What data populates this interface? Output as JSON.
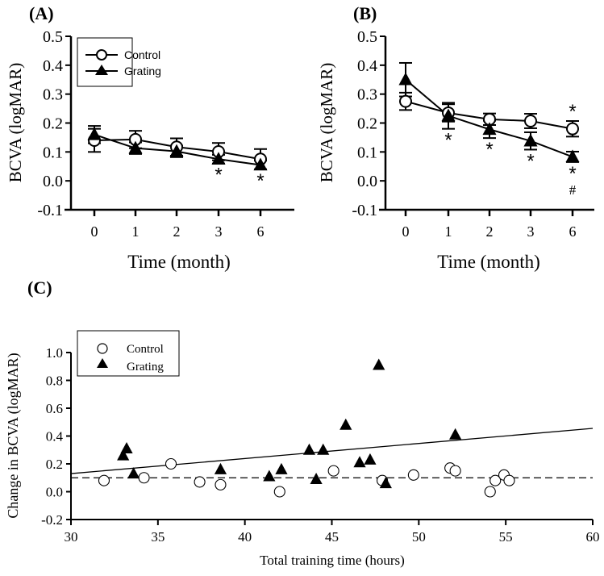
{
  "chart_data": [
    {
      "id": "A",
      "panel_label": "(A)",
      "type": "line",
      "xlabel": "Time (month)",
      "ylabel": "BCVA (logMAR)",
      "categories": [
        "0",
        "1",
        "2",
        "3",
        "6"
      ],
      "ylim": [
        -0.1,
        0.5
      ],
      "yticks": [
        "0.5",
        "0.4",
        "0.3",
        "0.2",
        "0.1",
        "0.0",
        "-0.1"
      ],
      "legend": {
        "placement": "top-left",
        "entries": [
          "Control",
          "Grating"
        ]
      },
      "series": [
        {
          "name": "Control",
          "marker": "open-circle",
          "values": [
            0.14,
            0.143,
            0.117,
            0.101,
            0.075
          ],
          "errors": [
            0.04,
            0.03,
            0.03,
            0.03,
            0.035
          ]
        },
        {
          "name": "Grating",
          "marker": "filled-triangle",
          "values": [
            0.16,
            0.113,
            0.102,
            0.075,
            0.055
          ],
          "errors": [
            0.03,
            0.02,
            0.02,
            0.015,
            0.015
          ]
        }
      ],
      "annotations": [
        {
          "text": "*",
          "category": "3",
          "position": "below-grating"
        },
        {
          "text": "*",
          "category": "6",
          "position": "below-grating"
        }
      ]
    },
    {
      "id": "B",
      "panel_label": "(B)",
      "type": "line",
      "xlabel": "Time (month)",
      "ylabel": "BCVA (logMAR)",
      "categories": [
        "0",
        "1",
        "2",
        "3",
        "6"
      ],
      "ylim": [
        -0.1,
        0.5
      ],
      "yticks": [
        "0.5",
        "0.4",
        "0.3",
        "0.2",
        "0.1",
        "0.0",
        "-0.1"
      ],
      "series": [
        {
          "name": "Control",
          "marker": "open-circle",
          "values": [
            0.275,
            0.235,
            0.213,
            0.207,
            0.18
          ],
          "errors": [
            0.03,
            0.03,
            0.02,
            0.025,
            0.027
          ]
        },
        {
          "name": "Grating",
          "marker": "filled-triangle",
          "values": [
            0.35,
            0.225,
            0.178,
            0.138,
            0.083
          ],
          "errors": [
            0.058,
            0.045,
            0.03,
            0.03,
            0.018
          ]
        }
      ],
      "annotations": [
        {
          "text": "*",
          "category": "1",
          "position": "below-grating"
        },
        {
          "text": "*",
          "category": "2",
          "position": "below-grating"
        },
        {
          "text": "*",
          "category": "3",
          "position": "below-grating"
        },
        {
          "text": "*",
          "category": "6",
          "position": "above-control"
        },
        {
          "text": "*",
          "category": "6",
          "position": "below-grating"
        },
        {
          "text": "#",
          "category": "6",
          "position": "below-grating-2"
        }
      ]
    },
    {
      "id": "C",
      "panel_label": "(C)",
      "type": "scatter",
      "xlabel": "Total training time (hours)",
      "ylabel": "Change in BCVA (logMAR)",
      "xlim": [
        30,
        60
      ],
      "ylim": [
        -0.2,
        1.0
      ],
      "xticks": [
        "30",
        "35",
        "40",
        "45",
        "50",
        "55",
        "60"
      ],
      "yticks": [
        "1.0",
        "0.8",
        "0.6",
        "0.4",
        "0.2",
        "0.0",
        "-0.2"
      ],
      "legend": {
        "placement": "top-left",
        "entries": [
          "Control",
          "Grating"
        ]
      },
      "series": [
        {
          "name": "Control",
          "marker": "open-circle",
          "points": [
            [
              31.9,
              0.08
            ],
            [
              34.2,
              0.1
            ],
            [
              35.75,
              0.2
            ],
            [
              37.4,
              0.07
            ],
            [
              38.6,
              0.05
            ],
            [
              42.0,
              0.0
            ],
            [
              45.1,
              0.15
            ],
            [
              47.9,
              0.08
            ],
            [
              49.7,
              0.12
            ],
            [
              51.8,
              0.17
            ],
            [
              52.1,
              0.15
            ],
            [
              54.1,
              0.0
            ],
            [
              54.4,
              0.08
            ],
            [
              54.9,
              0.12
            ],
            [
              55.2,
              0.08
            ]
          ]
        },
        {
          "name": "Grating",
          "marker": "filled-triangle",
          "points": [
            [
              33.0,
              0.26
            ],
            [
              33.2,
              0.31
            ],
            [
              33.6,
              0.13
            ],
            [
              38.6,
              0.16
            ],
            [
              41.4,
              0.11
            ],
            [
              42.1,
              0.16
            ],
            [
              43.7,
              0.3
            ],
            [
              44.1,
              0.09
            ],
            [
              44.5,
              0.3
            ],
            [
              45.8,
              0.48
            ],
            [
              46.6,
              0.21
            ],
            [
              47.2,
              0.23
            ],
            [
              47.7,
              0.91
            ],
            [
              48.1,
              0.06
            ],
            [
              52.1,
              0.41
            ]
          ]
        }
      ],
      "regression_line": {
        "x": [
          30,
          60
        ],
        "y": [
          0.13,
          0.455
        ]
      },
      "reference_line": {
        "y": 0.1,
        "style": "dashed"
      }
    }
  ]
}
